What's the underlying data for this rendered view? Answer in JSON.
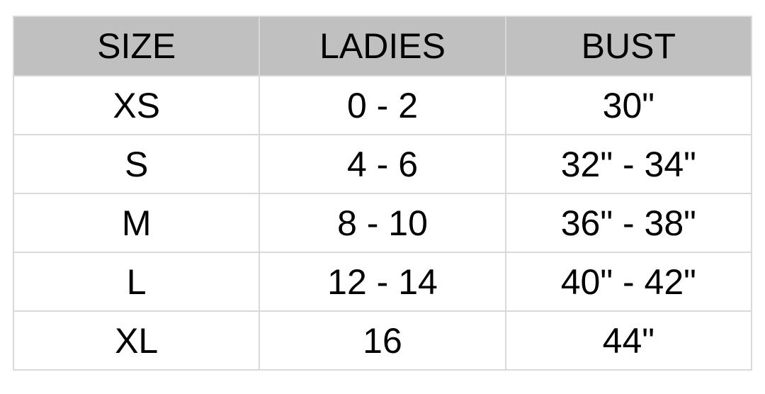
{
  "table": {
    "headers": [
      "SIZE",
      "LADIES",
      "BUST"
    ],
    "rows": [
      [
        "XS",
        "0 - 2",
        "30\""
      ],
      [
        "S",
        "4 - 6",
        "32\" - 34\""
      ],
      [
        "M",
        "8 - 10",
        "36\" - 38\""
      ],
      [
        "L",
        "12 - 14",
        "40\" - 42\""
      ],
      [
        "XL",
        "16",
        "44\""
      ]
    ],
    "header_bg": "#c0c0c0",
    "border_color": "#d9d9d9"
  }
}
